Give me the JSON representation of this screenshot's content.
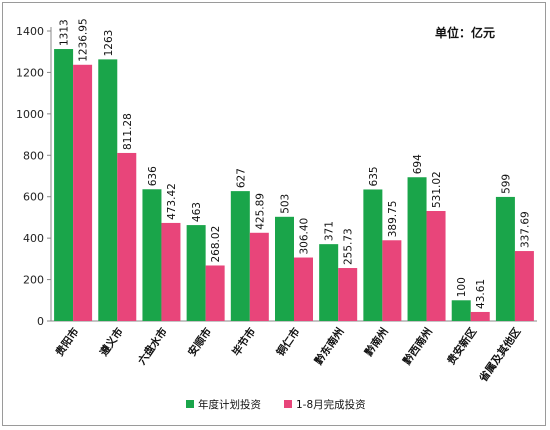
{
  "chart_data": {
    "type": "bar",
    "unit_label": "单位：亿元",
    "categories": [
      "贵阳市",
      "遵义市",
      "六盘水市",
      "安顺市",
      "毕节市",
      "铜仁市",
      "黔东南州",
      "黔南州",
      "黔西南州",
      "贵安新区",
      "省属及其他区"
    ],
    "series": [
      {
        "name": "年度计划投资",
        "color": "#1aa54a",
        "values": [
          1313,
          1263,
          636,
          463,
          627,
          503,
          371,
          635,
          694,
          100,
          599
        ],
        "labels": [
          "1313",
          "1263",
          "636",
          "463",
          "627",
          "503",
          "371",
          "635",
          "694",
          "100",
          "599"
        ]
      },
      {
        "name": "1-8月完成投资",
        "color": "#e8457a",
        "values": [
          1236.95,
          811.28,
          473.42,
          268.02,
          425.89,
          306.4,
          255.73,
          389.75,
          531.02,
          43.61,
          337.69
        ],
        "labels": [
          "1236.95",
          "811.28",
          "473.42",
          "268.02",
          "425.89",
          "306.40",
          "255.73",
          "389.75",
          "531.02",
          "43.61",
          "337.69"
        ]
      }
    ],
    "yticks": [
      0,
      200,
      400,
      600,
      800,
      1000,
      1200,
      1400
    ],
    "ylim": [
      0,
      1400
    ],
    "grid": false,
    "legend_position": "bottom"
  }
}
